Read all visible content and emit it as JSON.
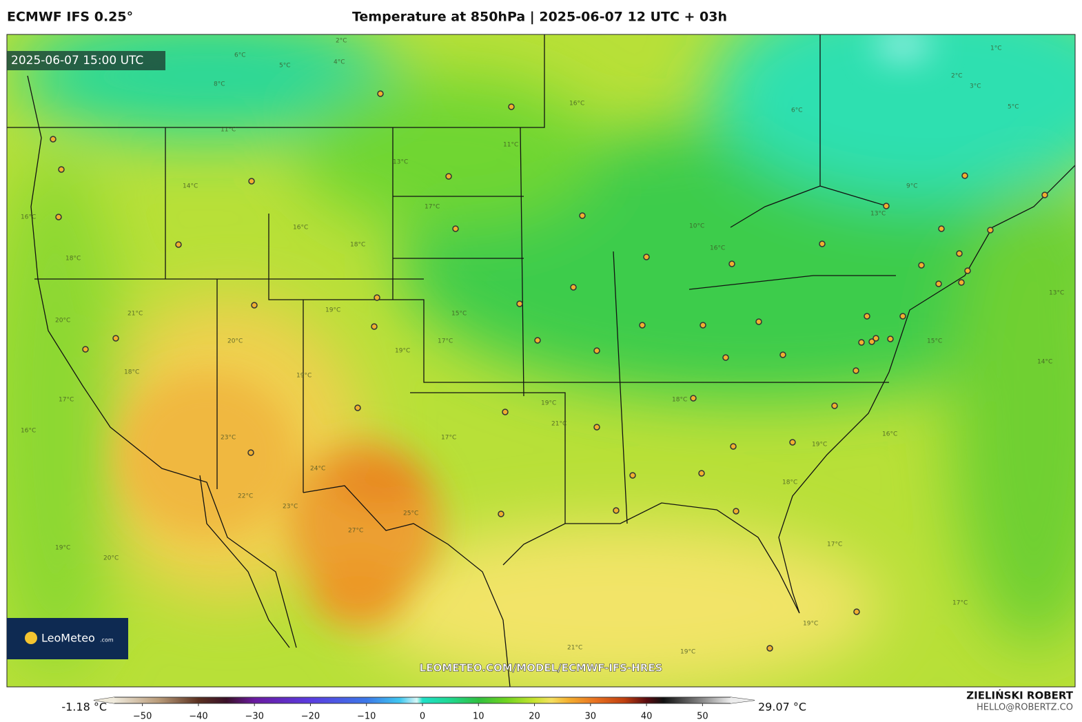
{
  "header": {
    "model": "ECMWF IFS 0.25°",
    "title": "Temperature at 850hPa | 2025-06-07 12 UTC + 03h"
  },
  "map": {
    "valid_time": "2025-06-07 15:00 UTC",
    "url": "LEOMETEO.COM/MODEL/ECMWF-IFS-HRES",
    "logo": "LeoMeteo",
    "logo_suffix": ".com",
    "contour_labels": [
      "2°C",
      "6°C",
      "4°C",
      "5°C",
      "8°C",
      "11°C",
      "16°C",
      "11°C",
      "13°C",
      "14°C",
      "16°C",
      "17°C",
      "18°C",
      "16°C",
      "18°C",
      "20°C",
      "21°C",
      "19°C",
      "18°C",
      "17°C",
      "16°C",
      "20°C",
      "23°C",
      "22°C",
      "23°C",
      "24°C",
      "25°C",
      "27°C",
      "19°C",
      "20°C",
      "21°C",
      "17°C",
      "19°C",
      "18°C",
      "19°C",
      "17°C",
      "13°C",
      "9°C",
      "6°C",
      "1°C",
      "2°C",
      "3°C",
      "5°C",
      "14°C",
      "19°C",
      "17°C",
      "19°C",
      "21°C",
      "13°C",
      "15°C",
      "16°C",
      "18°C",
      "19°C",
      "19°C",
      "15°C",
      "10°C",
      "16°C",
      "17°C"
    ]
  },
  "colorbar": {
    "range": [
      -55,
      55
    ],
    "ticks": [
      {
        "value": -50,
        "label": "−50"
      },
      {
        "value": -40,
        "label": "−40"
      },
      {
        "value": -30,
        "label": "−30"
      },
      {
        "value": -20,
        "label": "−20"
      },
      {
        "value": -10,
        "label": "−10"
      },
      0,
      10,
      20,
      30,
      40,
      50
    ],
    "stops": [
      [
        -55,
        "#efeadc"
      ],
      [
        -47,
        "#b89a78"
      ],
      [
        -40,
        "#5a3020"
      ],
      [
        -35,
        "#3a1028"
      ],
      [
        -30,
        "#6a1aa0"
      ],
      [
        -20,
        "#5a3ce0"
      ],
      [
        -10,
        "#3c78e8"
      ],
      [
        -4,
        "#40c8f0"
      ],
      [
        -1,
        "#d8f6f6"
      ],
      [
        0,
        "#20e0c8"
      ],
      [
        5,
        "#20d890"
      ],
      [
        10,
        "#30c040"
      ],
      [
        15,
        "#70d420"
      ],
      [
        20,
        "#c8e430"
      ],
      [
        23,
        "#f4e060"
      ],
      [
        26,
        "#f4b030"
      ],
      [
        31,
        "#e87020"
      ],
      [
        36,
        "#c04010"
      ],
      [
        40,
        "#5a0c10"
      ],
      [
        43,
        "#101010"
      ],
      [
        50,
        "#8a8a8a"
      ],
      [
        55,
        "#ececec"
      ]
    ],
    "min_label": "-1.18 °C",
    "max_label": "29.07 °C"
  },
  "credit": {
    "name": "ZIELIŃSKI ROBERT",
    "email": "HELLO@ROBERTZ.CO"
  }
}
